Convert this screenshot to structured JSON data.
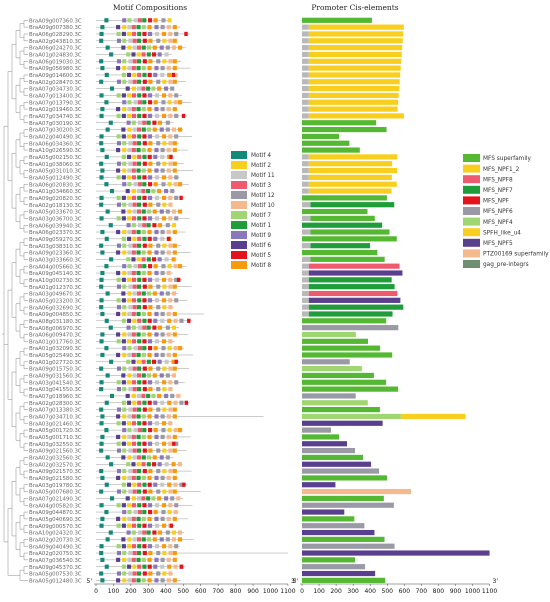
{
  "titles": {
    "motif": "Motif Compositions",
    "promoter": "Promoter Cis-elements"
  },
  "axis": {
    "ticks": [
      "0",
      "100",
      "200",
      "300",
      "400",
      "500",
      "600",
      "700",
      "800",
      "900",
      "1000",
      "1100"
    ],
    "start_label": "5'",
    "end_label": "3'"
  },
  "motif_legend": [
    {
      "label": "Motif 4",
      "color": "#13897a"
    },
    {
      "label": "Motif 2",
      "color": "#f8cf1f"
    },
    {
      "label": "Motif 11",
      "color": "#c8c8c8"
    },
    {
      "label": "Motif 3",
      "color": "#ee5b6f"
    },
    {
      "label": "Motif 12",
      "color": "#9a9aa7"
    },
    {
      "label": "Motif 10",
      "color": "#f4b98d"
    },
    {
      "label": "Motif 7",
      "color": "#9fd672"
    },
    {
      "label": "Motif 1",
      "color": "#1f9d3a"
    },
    {
      "label": "Motif 9",
      "color": "#8a78b8"
    },
    {
      "label": "Motif 6",
      "color": "#5b3f8f"
    },
    {
      "label": "Motif 5",
      "color": "#e5131b"
    },
    {
      "label": "Motif 8",
      "color": "#f99a0c"
    }
  ],
  "promoter_legend": [
    {
      "label": "MFS superfamily",
      "color": "#54b832"
    },
    {
      "label": "MFS_NPF1_2",
      "color": "#f8cf1f"
    },
    {
      "label": "MFS_NPF8",
      "color": "#ee5b6f"
    },
    {
      "label": "MFS_NPF7",
      "color": "#1f9d3a"
    },
    {
      "label": "MFS_NPF",
      "color": "#e5131b"
    },
    {
      "label": "MFS_NPF6",
      "color": "#9a9aa7"
    },
    {
      "label": "MFS_NPF4",
      "color": "#9fd672"
    },
    {
      "label": "SPFH_like_u4",
      "color": "#f8cf1f"
    },
    {
      "label": "MFS_NPF5",
      "color": "#5b3f8f"
    },
    {
      "label": "PTZ00169 superfamily",
      "color": "#f4b98d"
    },
    {
      "label": "gag_pre-integrs",
      "color": "#6f8f70"
    }
  ],
  "genes": [
    "BraA09g007360.3C",
    "BraA09g007380.3C",
    "BraA06g028290.3C",
    "BraA02g043810.3C",
    "BraA06g024270.3C",
    "BraA01g024830.3C",
    "BraA06g019030.3C",
    "BraA09g056980.3C",
    "BraA09g014600.3C",
    "BraA02g028470.3C",
    "BraA07g034730.3C",
    "BraA07g013400.3C",
    "BraA07g013790.3C",
    "BraA02g019460.3C",
    "BraA07g034740.3C",
    "BraA07g030190.3C",
    "BraA07g030200.3C",
    "BraA02g040490.3C",
    "BraA06g034360.3C",
    "BraA10g026590.3C",
    "BraA05g002150.3C",
    "BraA01g038060.3C",
    "BraA05g031010.3C",
    "BraA05g012490.3C",
    "BraA06g020830.3C",
    "BraA01g034660.3C",
    "BraA09g020820.3C",
    "BraA02g018130.3C",
    "BraA05g033670.3C",
    "BraA03g036700.3C",
    "BraA06g039940.3C",
    "BraA06g023370.3C",
    "BraA09g059270.3C",
    "BraA03g038310.3C",
    "BraA09g023360.3C",
    "BraA03g033660.3C",
    "BraA04g005660.3C",
    "BraA09g045140.3C",
    "BraA10g002730.3C",
    "BraA01g012370.3C",
    "BraA03g049670.3C",
    "BraA05g023200.3C",
    "BraA06g032690.3C",
    "BraA09g004850.3C",
    "BraA08g031180.3C",
    "BraA08g006970.3C",
    "BraA06g009470.3C",
    "BraA01g017760.3C",
    "BraA01g032090.3C",
    "BraA05g025490.3C",
    "BraA01g027720.3C",
    "BraA09g015750.3C",
    "BraA09g031560.3C",
    "BraA03g041540.3C",
    "BraA03g041550.3C",
    "BraA07g018960.3C",
    "BraA02g028300.3C",
    "BraA07g013380.3C",
    "BraA07g034710.3C",
    "BraA03g021460.3C",
    "BraA05g001720.3C",
    "BraA05g001710.3C",
    "BraA03g032550.3C",
    "BraA09g021560.3C",
    "BraA02g032560.3C",
    "BraA02g032570.3C",
    "BraA09g021570.3C",
    "BraA09g021580.3C",
    "BraA03g019780.3C",
    "BraA05g007680.3C",
    "BraA07g021490.3C",
    "BraA04g005820.3C",
    "BraA09g044870.3C",
    "BraA05g040690.3C",
    "BraA09g000570.3C",
    "BraA10g024320.3C",
    "BraA02g020730.3C",
    "BraA09g040490.3C",
    "BraA02g020750.3C",
    "BraA07g036540.3C",
    "BraA09g045370.3C",
    "BraA05g007530.3C",
    "BraA05g012480.3C"
  ]
}
